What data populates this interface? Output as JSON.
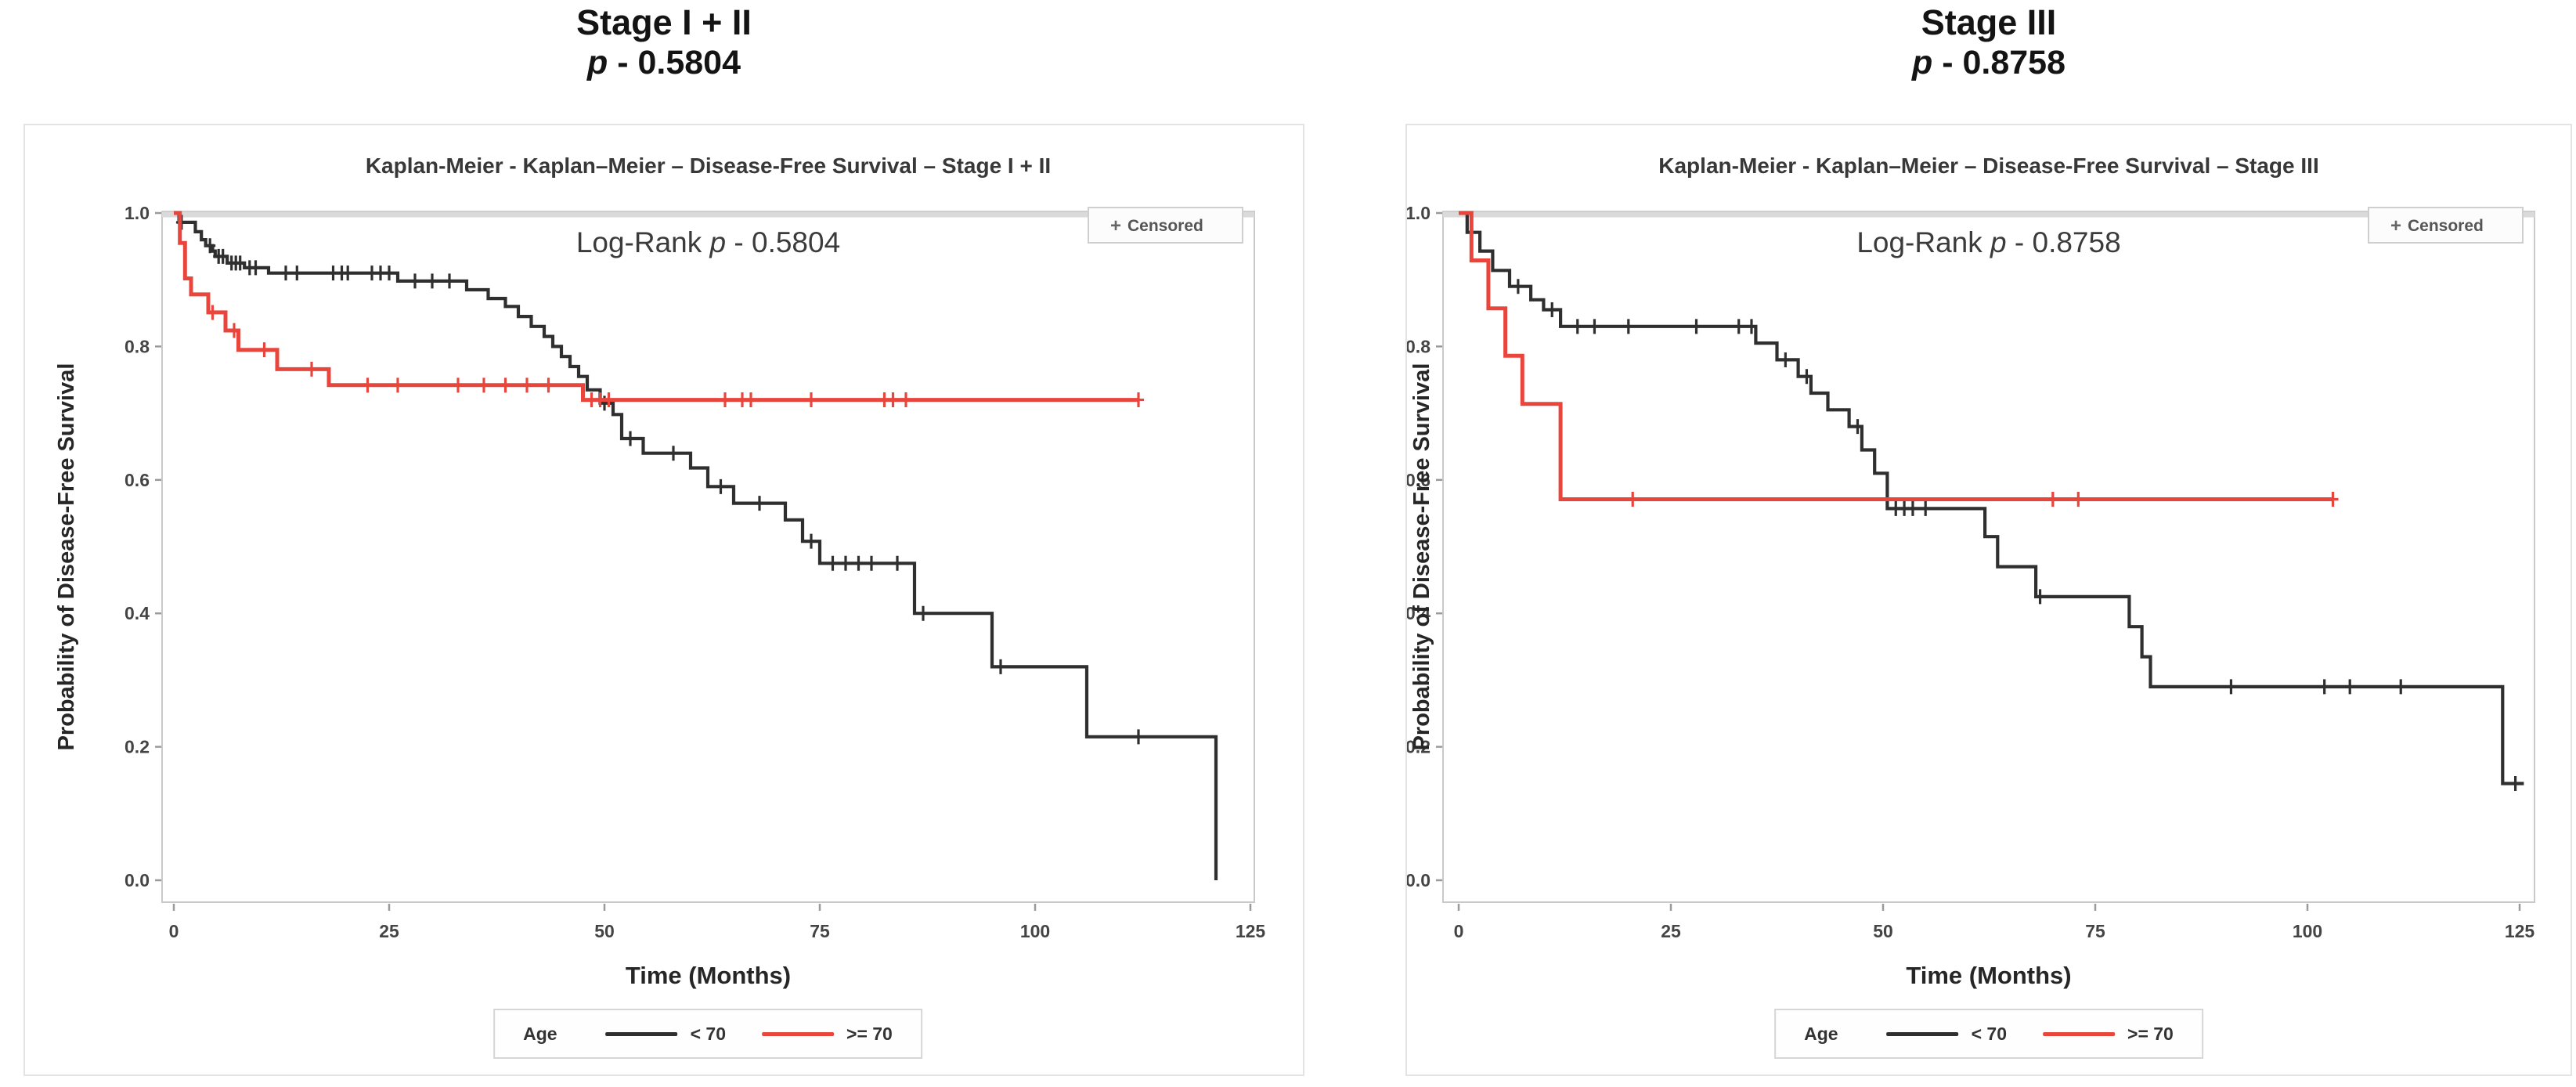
{
  "page": {
    "background": "#ffffff"
  },
  "headers": [
    {
      "title": "Stage I + II",
      "p_label": "p",
      "p_rest": " - 0.5804"
    },
    {
      "title": "Stage III",
      "p_label": "p",
      "p_rest": " - 0.8758"
    }
  ],
  "chart_data": [
    {
      "type": "km-step",
      "panel": "stage-1-2",
      "title": "Kaplan-Meier -  Kaplan–Meier – Disease-Free Survival – Stage I + II",
      "annotation": {
        "pre": "Log-Rank ",
        "p": "p",
        "rest": " - 0.5804"
      },
      "censored_symbol": "+",
      "censored_label": "Censored",
      "xlabel": "Time (Months)",
      "ylabel": "Probability of Disease-Free Survival",
      "xticks": [
        0,
        25,
        50,
        75,
        100,
        125
      ],
      "yticks": [
        0.0,
        0.2,
        0.4,
        0.6,
        0.8,
        1.0
      ],
      "xlim": [
        0,
        128
      ],
      "ylim": [
        0.0,
        1.0
      ],
      "grid": false,
      "legend": {
        "title": "Age",
        "position": "bottom",
        "entries": [
          {
            "label": "< 70",
            "color": "#2f2f2f"
          },
          {
            "label": ">= 70",
            "color": "#e8463d"
          }
        ]
      },
      "series": [
        {
          "name": "< 70",
          "color": "#2f2f2f",
          "end_x": 121,
          "steps": [
            [
              0,
              1.0
            ],
            [
              0.6,
              0.986
            ],
            [
              2.5,
              0.972
            ],
            [
              3.2,
              0.96
            ],
            [
              3.7,
              0.951
            ],
            [
              4.5,
              0.943
            ],
            [
              4.8,
              0.935
            ],
            [
              6.2,
              0.925
            ],
            [
              8.2,
              0.918
            ],
            [
              11,
              0.91
            ],
            [
              26,
              0.898
            ],
            [
              34,
              0.885
            ],
            [
              36.5,
              0.872
            ],
            [
              38.5,
              0.86
            ],
            [
              40,
              0.845
            ],
            [
              41.5,
              0.83
            ],
            [
              43,
              0.815
            ],
            [
              44,
              0.8
            ],
            [
              45,
              0.785
            ],
            [
              46,
              0.77
            ],
            [
              47,
              0.755
            ],
            [
              48,
              0.735
            ],
            [
              49.5,
              0.715
            ],
            [
              51,
              0.698
            ],
            [
              52,
              0.662
            ],
            [
              54.5,
              0.64
            ],
            [
              60,
              0.618
            ],
            [
              62,
              0.59
            ],
            [
              65,
              0.565
            ],
            [
              71,
              0.54
            ],
            [
              73,
              0.508
            ],
            [
              75,
              0.475
            ],
            [
              86,
              0.4
            ],
            [
              95,
              0.32
            ],
            [
              106,
              0.215
            ],
            [
              121,
              0.0
            ]
          ],
          "censors": [
            [
              0.9,
              0.986
            ],
            [
              4.2,
              0.951
            ],
            [
              5.2,
              0.935
            ],
            [
              5.7,
              0.935
            ],
            [
              6.7,
              0.925
            ],
            [
              7.2,
              0.925
            ],
            [
              7.7,
              0.925
            ],
            [
              8.8,
              0.918
            ],
            [
              9.5,
              0.918
            ],
            [
              13,
              0.91
            ],
            [
              14.3,
              0.91
            ],
            [
              18.5,
              0.91
            ],
            [
              19.5,
              0.91
            ],
            [
              20.2,
              0.91
            ],
            [
              23,
              0.91
            ],
            [
              24,
              0.91
            ],
            [
              25,
              0.91
            ],
            [
              28,
              0.898
            ],
            [
              30,
              0.898
            ],
            [
              32,
              0.898
            ],
            [
              50,
              0.715
            ],
            [
              53,
              0.662
            ],
            [
              58,
              0.64
            ],
            [
              63.5,
              0.59
            ],
            [
              68,
              0.565
            ],
            [
              74,
              0.508
            ],
            [
              76.5,
              0.475
            ],
            [
              78,
              0.475
            ],
            [
              79.5,
              0.475
            ],
            [
              81,
              0.475
            ],
            [
              84,
              0.475
            ],
            [
              87,
              0.4
            ],
            [
              96,
              0.32
            ],
            [
              112,
              0.215
            ]
          ]
        },
        {
          "name": ">= 70",
          "color": "#e8463d",
          "end_x": 112,
          "steps": [
            [
              0,
              1.0
            ],
            [
              0.7,
              0.955
            ],
            [
              1.3,
              0.902
            ],
            [
              2,
              0.878
            ],
            [
              4,
              0.851
            ],
            [
              6,
              0.824
            ],
            [
              7.5,
              0.795
            ],
            [
              12,
              0.766
            ],
            [
              18,
              0.742
            ],
            [
              47.5,
              0.72
            ]
          ],
          "censors": [
            [
              4.5,
              0.851
            ],
            [
              7,
              0.824
            ],
            [
              10.5,
              0.795
            ],
            [
              16,
              0.766
            ],
            [
              22.5,
              0.742
            ],
            [
              26,
              0.742
            ],
            [
              33,
              0.742
            ],
            [
              36,
              0.742
            ],
            [
              38.5,
              0.742
            ],
            [
              41,
              0.742
            ],
            [
              43.5,
              0.742
            ],
            [
              48.5,
              0.72
            ],
            [
              49.5,
              0.72
            ],
            [
              50.5,
              0.72
            ],
            [
              64,
              0.72
            ],
            [
              66,
              0.72
            ],
            [
              67,
              0.72
            ],
            [
              74,
              0.72
            ],
            [
              82.5,
              0.72
            ],
            [
              83.5,
              0.72
            ],
            [
              85,
              0.72
            ],
            [
              112,
              0.72
            ]
          ]
        }
      ]
    },
    {
      "type": "km-step",
      "panel": "stage-3",
      "title": "Kaplan-Meier -  Kaplan–Meier – Disease-Free Survival – Stage III",
      "annotation": {
        "pre": "Log-Rank ",
        "p": "p",
        "rest": " - 0.8758"
      },
      "censored_symbol": "+",
      "censored_label": "Censored",
      "xlabel": "Time (Months)",
      "ylabel": "Probability of Disease-Free Survival",
      "xticks": [
        0,
        25,
        50,
        75,
        100,
        125
      ],
      "yticks": [
        0.0,
        0.2,
        0.4,
        0.6,
        0.8,
        1.0
      ],
      "xlim": [
        0,
        128
      ],
      "ylim": [
        0.0,
        1.0
      ],
      "grid": false,
      "legend": {
        "title": "Age",
        "position": "bottom",
        "entries": [
          {
            "label": "< 70",
            "color": "#2f2f2f"
          },
          {
            "label": ">= 70",
            "color": "#e8463d"
          }
        ]
      },
      "series": [
        {
          "name": "< 70",
          "color": "#2f2f2f",
          "end_x": 125.5,
          "steps": [
            [
              0,
              1.0
            ],
            [
              1,
              0.971
            ],
            [
              2.5,
              0.943
            ],
            [
              4,
              0.914
            ],
            [
              6,
              0.89
            ],
            [
              8.5,
              0.87
            ],
            [
              10,
              0.855
            ],
            [
              12,
              0.83
            ],
            [
              35,
              0.805
            ],
            [
              37.5,
              0.78
            ],
            [
              40,
              0.755
            ],
            [
              41.5,
              0.73
            ],
            [
              43.5,
              0.705
            ],
            [
              46,
              0.68
            ],
            [
              47.5,
              0.645
            ],
            [
              49,
              0.61
            ],
            [
              50.5,
              0.557
            ],
            [
              62,
              0.515
            ],
            [
              63.5,
              0.47
            ],
            [
              68,
              0.425
            ],
            [
              79,
              0.38
            ],
            [
              80.5,
              0.335
            ],
            [
              81.5,
              0.29
            ],
            [
              123,
              0.145
            ]
          ],
          "censors": [
            [
              7,
              0.89
            ],
            [
              11,
              0.855
            ],
            [
              14,
              0.83
            ],
            [
              16,
              0.83
            ],
            [
              20,
              0.83
            ],
            [
              28,
              0.83
            ],
            [
              33,
              0.83
            ],
            [
              34.5,
              0.83
            ],
            [
              38.5,
              0.78
            ],
            [
              41,
              0.755
            ],
            [
              47,
              0.68
            ],
            [
              51.5,
              0.557
            ],
            [
              52.5,
              0.557
            ],
            [
              53.5,
              0.557
            ],
            [
              55,
              0.557
            ],
            [
              68.5,
              0.425
            ],
            [
              91,
              0.29
            ],
            [
              102,
              0.29
            ],
            [
              105,
              0.29
            ],
            [
              111,
              0.29
            ],
            [
              124.5,
              0.145
            ]
          ]
        },
        {
          "name": ">= 70",
          "color": "#e8463d",
          "end_x": 103,
          "steps": [
            [
              0,
              1.0
            ],
            [
              1.5,
              0.929
            ],
            [
              3.5,
              0.857
            ],
            [
              5.5,
              0.786
            ],
            [
              7.5,
              0.714
            ],
            [
              12,
              0.571
            ]
          ],
          "censors": [
            [
              20.5,
              0.571
            ],
            [
              70,
              0.571
            ],
            [
              73,
              0.571
            ],
            [
              103,
              0.571
            ]
          ]
        }
      ]
    }
  ]
}
